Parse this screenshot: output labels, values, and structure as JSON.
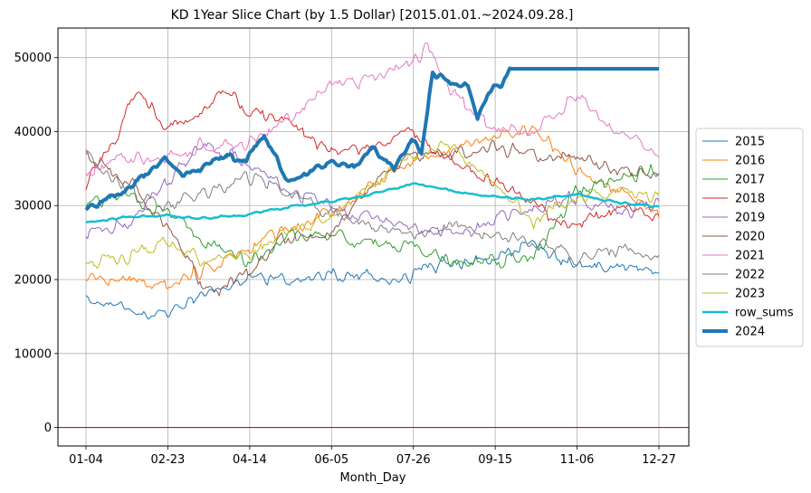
{
  "chart_data": {
    "type": "line",
    "title": "KD 1Year Slice Chart (by 1.5 Dollar) [2015.01.01.~2024.09.28.]",
    "xlabel": "Month_Day",
    "ylabel": "",
    "x_tick_labels": [
      "01-04",
      "02-23",
      "04-14",
      "06-05",
      "07-26",
      "09-15",
      "11-06",
      "12-27"
    ],
    "y_ticks": [
      0,
      10000,
      20000,
      30000,
      40000,
      50000
    ],
    "ylim": [
      -2500,
      54000
    ],
    "grid": true,
    "legend_position": "center-right",
    "zero_line": {
      "value": 0,
      "color": "#e8000b"
    },
    "x_domain": {
      "start": "01-04",
      "end": "12-27"
    },
    "series": [
      {
        "name": "2015",
        "color": "#1f77b4",
        "width": 1,
        "x": [
          "01-04",
          "02-01",
          "02-23",
          "03-15",
          "04-14",
          "05-10",
          "06-05",
          "07-01",
          "07-26",
          "08-20",
          "09-15",
          "10-10",
          "11-06",
          "12-01",
          "12-27"
        ],
        "values": [
          17500,
          15600,
          15000,
          18000,
          20000,
          20200,
          20500,
          20200,
          20500,
          22500,
          22500,
          25000,
          22000,
          21500,
          21000
        ]
      },
      {
        "name": "2016",
        "color": "#ff7f0e",
        "width": 1,
        "x": [
          "01-04",
          "02-01",
          "02-23",
          "03-15",
          "04-14",
          "05-10",
          "06-05",
          "07-01",
          "07-26",
          "08-20",
          "09-15",
          "10-10",
          "11-06",
          "12-01",
          "12-27"
        ],
        "values": [
          20500,
          20000,
          19500,
          21000,
          24000,
          27000,
          29000,
          33000,
          36000,
          38000,
          39000,
          40500,
          35000,
          32000,
          29000
        ]
      },
      {
        "name": "2017",
        "color": "#2ca02c",
        "width": 1,
        "x": [
          "01-04",
          "02-01",
          "02-23",
          "03-15",
          "04-14",
          "05-10",
          "06-05",
          "07-01",
          "07-26",
          "08-20",
          "09-15",
          "10-10",
          "11-06",
          "12-01",
          "12-27"
        ],
        "values": [
          30500,
          31000,
          29000,
          26000,
          22000,
          26000,
          26000,
          25000,
          24000,
          22500,
          22500,
          23000,
          32000,
          34000,
          34500
        ]
      },
      {
        "name": "2018",
        "color": "#d62728",
        "width": 1,
        "x": [
          "01-04",
          "01-20",
          "02-01",
          "02-10",
          "02-23",
          "03-15",
          "04-01",
          "04-14",
          "05-10",
          "06-05",
          "07-01",
          "07-26",
          "08-20",
          "09-15",
          "10-10",
          "11-06",
          "12-01",
          "12-27"
        ],
        "values": [
          33000,
          38000,
          44000,
          45000,
          40000,
          42000,
          46000,
          43000,
          42000,
          37000,
          38000,
          40000,
          36000,
          33000,
          30000,
          27000,
          30000,
          28000
        ]
      },
      {
        "name": "2019",
        "color": "#9467bd",
        "width": 1,
        "x": [
          "01-04",
          "02-01",
          "02-23",
          "03-15",
          "04-14",
          "05-10",
          "06-05",
          "07-01",
          "07-26",
          "08-20",
          "09-15",
          "10-10",
          "11-06",
          "12-01",
          "12-27"
        ],
        "values": [
          26000,
          28000,
          33000,
          38000,
          36000,
          32000,
          30000,
          28000,
          27000,
          26000,
          28000,
          30000,
          31000,
          29000,
          30000
        ]
      },
      {
        "name": "2020",
        "color": "#8c564b",
        "width": 1,
        "x": [
          "01-04",
          "02-01",
          "02-23",
          "03-15",
          "03-25",
          "04-14",
          "05-10",
          "06-05",
          "07-01",
          "07-26",
          "08-20",
          "09-15",
          "10-10",
          "11-06",
          "12-01",
          "12-27"
        ],
        "values": [
          37000,
          33000,
          27000,
          20000,
          18000,
          21000,
          26000,
          26000,
          33000,
          37000,
          37000,
          38000,
          37000,
          36000,
          35000,
          34000
        ]
      },
      {
        "name": "2021",
        "color": "#e377c2",
        "width": 1,
        "x": [
          "01-04",
          "02-01",
          "02-23",
          "03-15",
          "04-14",
          "05-10",
          "06-05",
          "07-01",
          "07-26",
          "08-05",
          "08-20",
          "09-15",
          "10-10",
          "11-06",
          "12-01",
          "12-27"
        ],
        "values": [
          34500,
          37000,
          36000,
          38000,
          38000,
          42000,
          46000,
          47000,
          49000,
          51500,
          45000,
          41000,
          40000,
          45000,
          40000,
          36500
        ]
      },
      {
        "name": "2022",
        "color": "#7f7f7f",
        "width": 1,
        "x": [
          "01-04",
          "02-01",
          "02-23",
          "03-15",
          "04-14",
          "05-10",
          "06-05",
          "07-01",
          "07-26",
          "08-20",
          "09-15",
          "10-10",
          "11-06",
          "12-01",
          "12-27"
        ],
        "values": [
          36500,
          32000,
          30000,
          31000,
          34000,
          32000,
          29000,
          27000,
          26000,
          27000,
          26000,
          25000,
          23000,
          24000,
          22500
        ]
      },
      {
        "name": "2023",
        "color": "#bcbd22",
        "width": 1,
        "x": [
          "01-04",
          "02-01",
          "02-23",
          "03-15",
          "04-14",
          "05-10",
          "06-05",
          "07-01",
          "07-26",
          "08-20",
          "09-15",
          "10-10",
          "11-06",
          "12-01",
          "12-27"
        ],
        "values": [
          22000,
          23000,
          25000,
          23000,
          23500,
          27000,
          28000,
          33000,
          37000,
          38000,
          33000,
          28000,
          31000,
          32000,
          31000
        ]
      },
      {
        "name": "row_sums",
        "color": "#17becf",
        "width": 2.5,
        "x": [
          "01-04",
          "02-01",
          "02-23",
          "03-15",
          "04-14",
          "05-10",
          "06-05",
          "07-01",
          "07-26",
          "08-20",
          "09-15",
          "10-10",
          "11-06",
          "12-01",
          "12-27"
        ],
        "values": [
          27800,
          28500,
          28700,
          28200,
          28800,
          29800,
          30500,
          31500,
          33000,
          32000,
          31200,
          30800,
          31500,
          30500,
          29800
        ]
      },
      {
        "name": "2024",
        "color": "#1f77b4",
        "width": 4,
        "x": [
          "01-04",
          "01-15",
          "02-01",
          "02-23",
          "03-05",
          "03-15",
          "04-01",
          "04-14",
          "04-25",
          "05-10",
          "05-20",
          "06-05",
          "06-20",
          "07-01",
          "07-15",
          "07-26",
          "08-01",
          "08-08",
          "08-20",
          "08-30",
          "09-05",
          "09-15",
          "09-20",
          "09-25",
          "10-10",
          "11-06",
          "12-01",
          "12-27"
        ],
        "values": [
          29500,
          30500,
          32500,
          36500,
          34000,
          35000,
          37000,
          36000,
          39500,
          33000,
          34000,
          36000,
          35000,
          38000,
          35000,
          39000,
          37000,
          48000,
          46500,
          46000,
          42000,
          46500,
          46000,
          48500,
          48500,
          48500,
          48500,
          48500
        ]
      }
    ]
  }
}
